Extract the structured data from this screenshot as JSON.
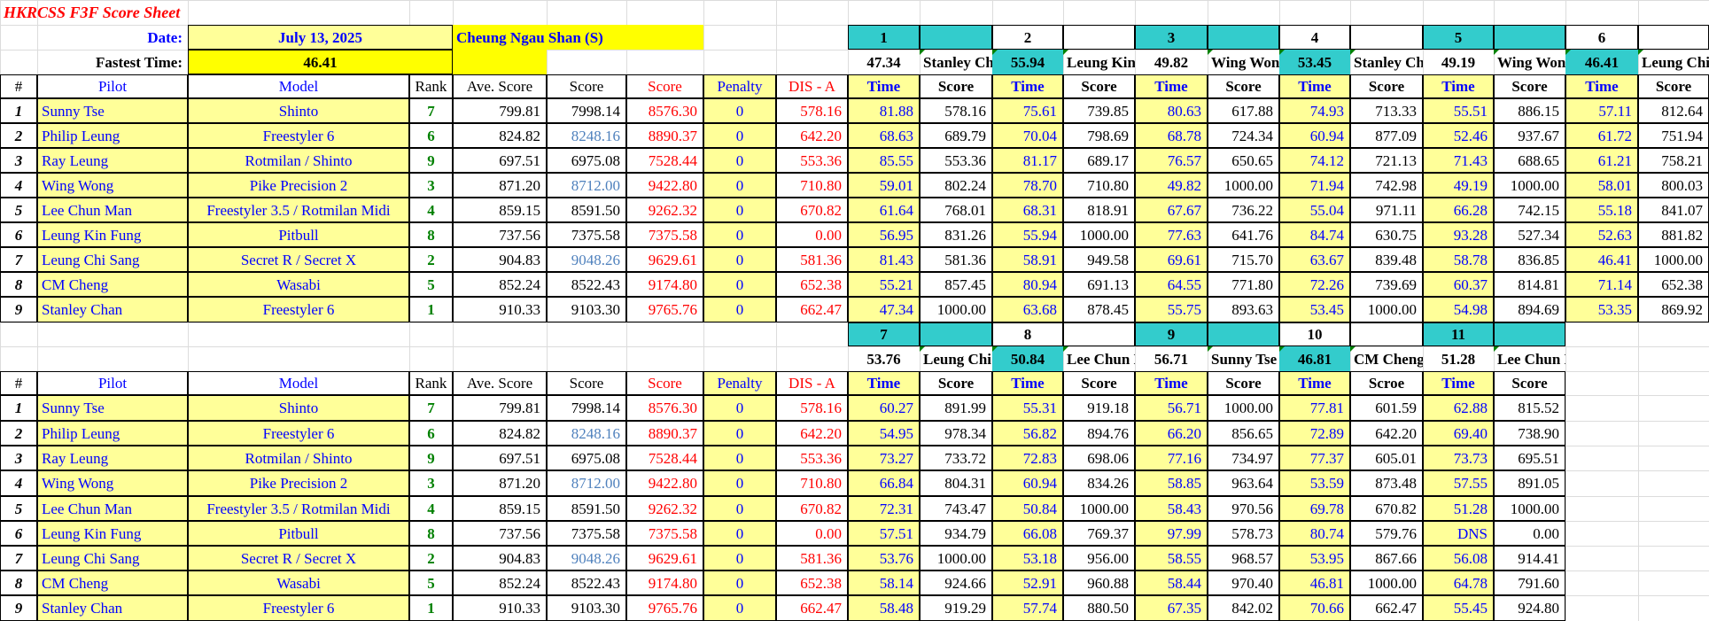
{
  "sheet": {
    "title": "HKRCSS F3F Score Sheet",
    "date_label": "Date:",
    "date_value": "July 13, 2025",
    "fastest_label": "Fastest Time:",
    "fastest_value": "46.41",
    "location": "Cheung Ngau Shan (S)"
  },
  "columns": [
    "#",
    "Pilot",
    "Model",
    "Rank",
    "Ave. Score",
    "Score",
    "Score",
    "Penalty",
    "DIS - A"
  ],
  "pilots": [
    {
      "no": "1",
      "pilot": "Sunny Tse",
      "model": "Shinto",
      "rank": "7",
      "ave": "799.81",
      "score": "7998.14",
      "score2": "8576.30",
      "penalty": "0",
      "dis": "578.16"
    },
    {
      "no": "2",
      "pilot": "Philip Leung",
      "model": "Freestyler 6",
      "rank": "6",
      "ave": "824.82",
      "score": "8248.16",
      "score2": "8890.37",
      "penalty": "0",
      "dis": "642.20"
    },
    {
      "no": "3",
      "pilot": "Ray Leung",
      "model": "Rotmilan / Shinto",
      "rank": "9",
      "ave": "697.51",
      "score": "6975.08",
      "score2": "7528.44",
      "penalty": "0",
      "dis": "553.36"
    },
    {
      "no": "4",
      "pilot": "Wing Wong",
      "model": "Pike Precision 2",
      "rank": "3",
      "ave": "871.20",
      "score": "8712.00",
      "score2": "9422.80",
      "penalty": "0",
      "dis": "710.80"
    },
    {
      "no": "5",
      "pilot": "Lee Chun Man",
      "model": "Freestyler 3.5 / Rotmilan Midi",
      "rank": "4",
      "ave": "859.15",
      "score": "8591.50",
      "score2": "9262.32",
      "penalty": "0",
      "dis": "670.82"
    },
    {
      "no": "6",
      "pilot": "Leung Kin Fung",
      "model": "Pitbull",
      "rank": "8",
      "ave": "737.56",
      "score": "7375.58",
      "score2": "7375.58",
      "penalty": "0",
      "dis": "0.00"
    },
    {
      "no": "7",
      "pilot": "Leung Chi Sang",
      "model": "Secret R / Secret X",
      "rank": "2",
      "ave": "904.83",
      "score": "9048.26",
      "score2": "9629.61",
      "penalty": "0",
      "dis": "581.36"
    },
    {
      "no": "8",
      "pilot": "CM Cheng",
      "model": "Wasabi",
      "rank": "5",
      "ave": "852.24",
      "score": "8522.43",
      "score2": "9174.80",
      "penalty": "0",
      "dis": "652.38"
    },
    {
      "no": "9",
      "pilot": "Stanley Chan",
      "model": "Freestyler 6",
      "rank": "1",
      "ave": "910.33",
      "score": "9103.30",
      "score2": "9765.76",
      "penalty": "0",
      "dis": "662.47"
    }
  ],
  "rounds_top": [
    {
      "num": "1",
      "best": "47.34",
      "best_pilot": "Stanley Chan",
      "time_label": "Time",
      "score_label": "Score",
      "times": [
        "81.88",
        "68.63",
        "85.55",
        "59.01",
        "61.64",
        "56.95",
        "81.43",
        "55.21",
        "47.34"
      ],
      "scores": [
        "578.16",
        "689.79",
        "553.36",
        "802.24",
        "768.01",
        "831.26",
        "581.36",
        "857.45",
        "1000.00"
      ]
    },
    {
      "num": "2",
      "best": "55.94",
      "best_pilot": "Leung Kin Fung",
      "time_label": "Time",
      "score_label": "Score",
      "times": [
        "75.61",
        "70.04",
        "81.17",
        "78.70",
        "68.31",
        "55.94",
        "58.91",
        "80.94",
        "63.68"
      ],
      "scores": [
        "739.85",
        "798.69",
        "689.17",
        "710.80",
        "818.91",
        "1000.00",
        "949.58",
        "691.13",
        "878.45"
      ]
    },
    {
      "num": "3",
      "best": "49.82",
      "best_pilot": "Wing Wong",
      "time_label": "Time",
      "score_label": "Score",
      "times": [
        "80.63",
        "68.78",
        "76.57",
        "49.82",
        "67.67",
        "77.63",
        "69.61",
        "64.55",
        "55.75"
      ],
      "scores": [
        "617.88",
        "724.34",
        "650.65",
        "1000.00",
        "736.22",
        "641.76",
        "715.70",
        "771.80",
        "893.63"
      ]
    },
    {
      "num": "4",
      "best": "53.45",
      "best_pilot": "Stanley Chan",
      "time_label": "Time",
      "score_label": "Score",
      "times": [
        "74.93",
        "60.94",
        "74.12",
        "71.94",
        "55.04",
        "84.74",
        "63.67",
        "72.26",
        "53.45"
      ],
      "scores": [
        "713.33",
        "877.09",
        "721.13",
        "742.98",
        "971.11",
        "630.75",
        "839.48",
        "739.69",
        "1000.00"
      ]
    },
    {
      "num": "5",
      "best": "49.19",
      "best_pilot": "Wing Wong",
      "time_label": "Time",
      "score_label": "Score",
      "times": [
        "55.51",
        "52.46",
        "71.43",
        "49.19",
        "66.28",
        "93.28",
        "58.78",
        "60.37",
        "54.98"
      ],
      "scores": [
        "886.15",
        "937.67",
        "688.65",
        "1000.00",
        "742.15",
        "527.34",
        "836.85",
        "814.81",
        "894.69"
      ]
    },
    {
      "num": "6",
      "best": "46.41",
      "best_pilot": "Leung Chi Sang",
      "time_label": "Time",
      "score_label": "Score",
      "times": [
        "57.11",
        "61.72",
        "61.21",
        "58.01",
        "55.18",
        "52.63",
        "46.41",
        "71.14",
        "53.35"
      ],
      "scores": [
        "812.64",
        "751.94",
        "758.21",
        "800.03",
        "841.07",
        "881.82",
        "1000.00",
        "652.38",
        "869.92"
      ]
    }
  ],
  "rounds_bottom": [
    {
      "num": "7",
      "best": "53.76",
      "best_pilot": "Leung Chi Sang",
      "time_label": "Time",
      "score_label": "Score",
      "times": [
        "60.27",
        "54.95",
        "73.27",
        "66.84",
        "72.31",
        "57.51",
        "53.76",
        "58.14",
        "58.48"
      ],
      "scores": [
        "891.99",
        "978.34",
        "733.72",
        "804.31",
        "743.47",
        "934.79",
        "1000.00",
        "924.66",
        "919.29"
      ]
    },
    {
      "num": "8",
      "best": "50.84",
      "best_pilot": "Lee Chun Man",
      "time_label": "Time",
      "score_label": "Score",
      "times": [
        "55.31",
        "56.82",
        "72.83",
        "60.94",
        "50.84",
        "66.08",
        "53.18",
        "52.91",
        "57.74"
      ],
      "scores": [
        "919.18",
        "894.76",
        "698.06",
        "834.26",
        "1000.00",
        "769.37",
        "956.00",
        "960.88",
        "880.50"
      ]
    },
    {
      "num": "9",
      "best": "56.71",
      "best_pilot": "Sunny Tse",
      "time_label": "Time",
      "score_label": "Score",
      "times": [
        "56.71",
        "66.20",
        "77.16",
        "58.85",
        "58.43",
        "97.99",
        "58.55",
        "58.44",
        "67.35"
      ],
      "scores": [
        "1000.00",
        "856.65",
        "734.97",
        "963.64",
        "970.56",
        "578.73",
        "968.57",
        "970.40",
        "842.02"
      ]
    },
    {
      "num": "10",
      "best": "46.81",
      "best_pilot": "CM Cheng",
      "time_label": "Time",
      "score_label": "Scroe",
      "times": [
        "77.81",
        "72.89",
        "77.37",
        "53.59",
        "69.78",
        "80.74",
        "53.95",
        "46.81",
        "70.66"
      ],
      "scores": [
        "601.59",
        "642.20",
        "605.01",
        "873.48",
        "670.82",
        "579.76",
        "867.66",
        "1000.00",
        "662.47"
      ]
    },
    {
      "num": "11",
      "best": "51.28",
      "best_pilot": "Lee Chun Man",
      "time_label": "Time",
      "score_label": "Score",
      "times": [
        "62.88",
        "69.40",
        "73.73",
        "57.55",
        "51.28",
        "DNS",
        "56.08",
        "64.78",
        "55.45"
      ],
      "scores": [
        "815.52",
        "738.90",
        "695.51",
        "891.05",
        "1000.00",
        "0.00",
        "914.41",
        "791.60",
        "924.80"
      ]
    }
  ],
  "colors": {
    "yellow_fill": "#ffff99",
    "bright_yellow": "#ffff00",
    "teal": "#33cccc",
    "blue_text": "#0000ff",
    "red_text": "#ff0000",
    "green_text": "#008000",
    "steel_text": "#4f81bd"
  }
}
